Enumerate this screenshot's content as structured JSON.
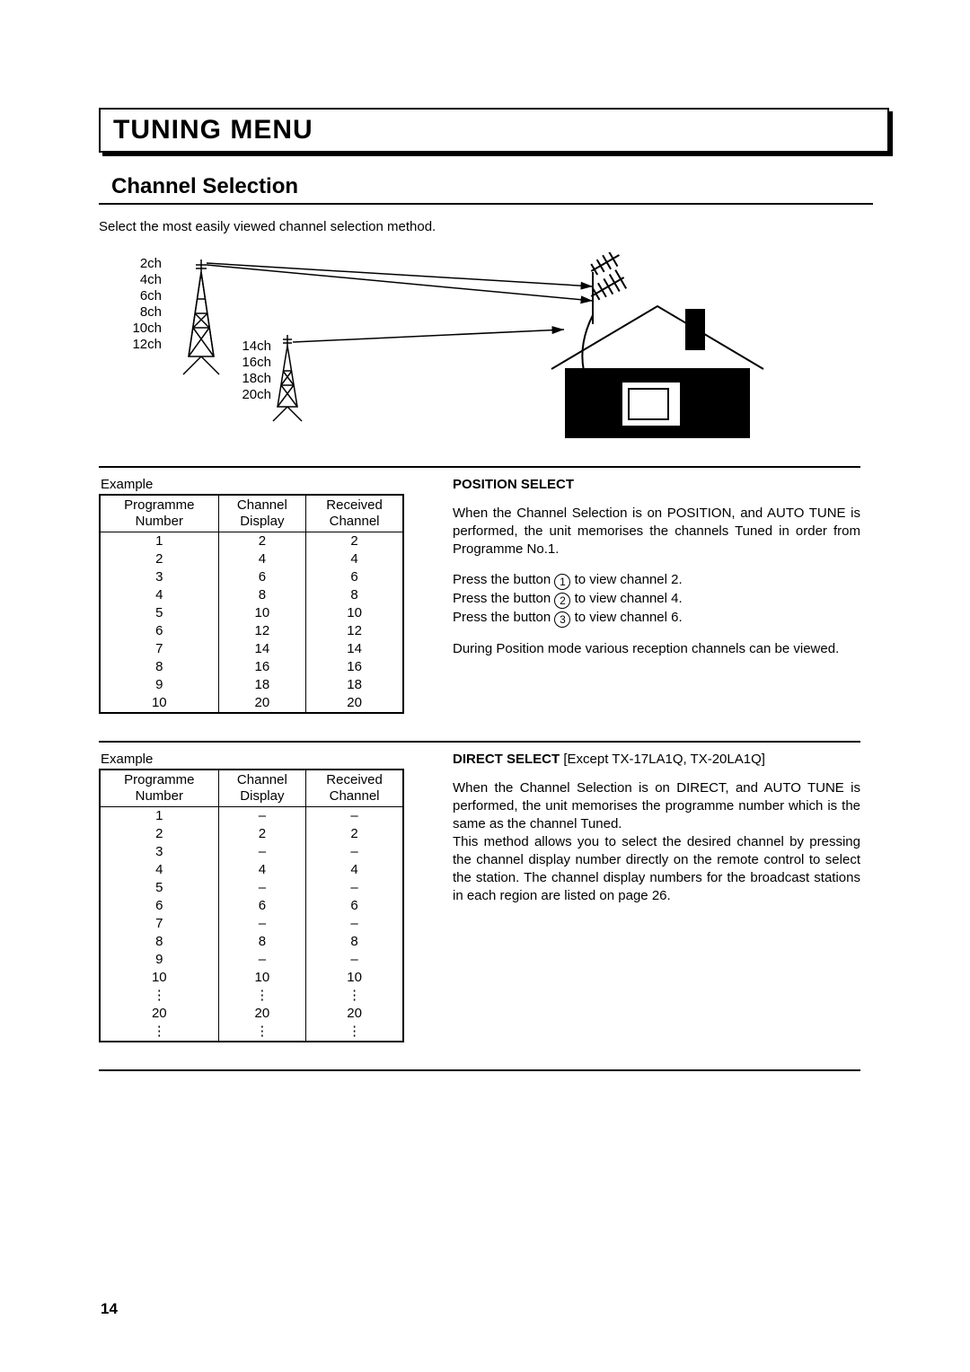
{
  "title": "TUNING MENU",
  "subtitle": "Channel Selection",
  "intro": "Select the most easily viewed channel selection method.",
  "diagram": {
    "tower1_channels": [
      "2ch",
      "4ch",
      "6ch",
      "8ch",
      "10ch",
      "12ch"
    ],
    "tower2_channels": [
      "14ch",
      "16ch",
      "18ch",
      "20ch"
    ],
    "stroke_color": "#000000",
    "fill_color": "#ffffff"
  },
  "section1": {
    "example_label": "Example",
    "table": {
      "columns": [
        [
          "Programme",
          "Number"
        ],
        [
          "Channel",
          "Display"
        ],
        [
          "Received",
          "Channel"
        ]
      ],
      "rows": [
        [
          "1",
          "2",
          "2"
        ],
        [
          "2",
          "4",
          "4"
        ],
        [
          "3",
          "6",
          "6"
        ],
        [
          "4",
          "8",
          "8"
        ],
        [
          "5",
          "10",
          "10"
        ],
        [
          "6",
          "12",
          "12"
        ],
        [
          "7",
          "14",
          "14"
        ],
        [
          "8",
          "16",
          "16"
        ],
        [
          "9",
          "18",
          "18"
        ],
        [
          "10",
          "20",
          "20"
        ]
      ]
    },
    "heading": "POSITION SELECT",
    "para1": "When the Channel Selection is on POSITION, and AUTO TUNE is performed, the unit memorises the channels Tuned in order from Programme No.1.",
    "press_prefix": "Press the button ",
    "press_suffix_a": " to view channel 2.",
    "press_suffix_b": " to view channel 4.",
    "press_suffix_c": " to view channel 6.",
    "btn1": "1",
    "btn2": "2",
    "btn3": "3",
    "para2": "During Position mode various reception channels can be viewed."
  },
  "section2": {
    "example_label": "Example",
    "table": {
      "columns": [
        [
          "Programme",
          "Number"
        ],
        [
          "Channel",
          "Display"
        ],
        [
          "Received",
          "Channel"
        ]
      ],
      "rows": [
        [
          "1",
          "–",
          "–"
        ],
        [
          "2",
          "2",
          "2"
        ],
        [
          "3",
          "–",
          "–"
        ],
        [
          "4",
          "4",
          "4"
        ],
        [
          "5",
          "–",
          "–"
        ],
        [
          "6",
          "6",
          "6"
        ],
        [
          "7",
          "–",
          "–"
        ],
        [
          "8",
          "8",
          "8"
        ],
        [
          "9",
          "–",
          "–"
        ],
        [
          "10",
          "10",
          "10"
        ],
        [
          "⋮",
          "⋮",
          "⋮"
        ],
        [
          "20",
          "20",
          "20"
        ],
        [
          "⋮",
          "⋮",
          "⋮"
        ]
      ]
    },
    "heading": "DIRECT SELECT",
    "heading_note": " [Except TX-17LA1Q, TX-20LA1Q]",
    "para1": "When the Channel Selection is on DIRECT, and AUTO TUNE is performed, the unit memorises the programme number which is the same as the channel Tuned.",
    "para2": "This method allows you to select the desired channel by pressing the channel display number directly on the remote control to select the station. The channel display numbers for the broadcast stations in each region are listed on page 26."
  },
  "page_number": "14",
  "colors": {
    "text": "#000000",
    "background": "#ffffff",
    "border": "#000000"
  }
}
